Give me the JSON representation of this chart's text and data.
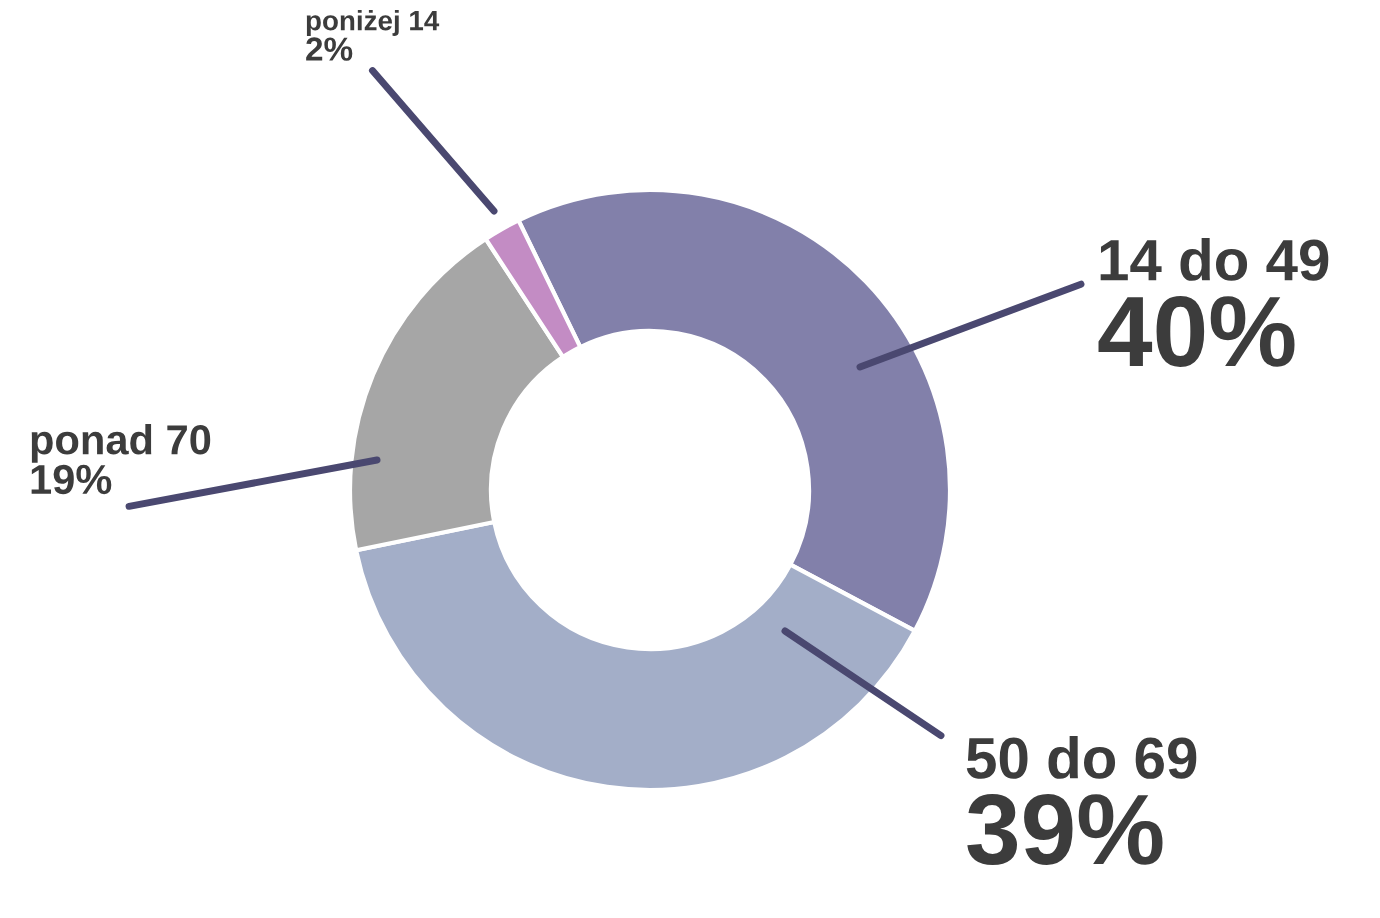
{
  "chart_data": {
    "type": "donut",
    "categories": [
      "14 do 49",
      "50 do 69",
      "ponad 70",
      "poniżej 14"
    ],
    "values": [
      40,
      39,
      19,
      2
    ],
    "value_labels": [
      "40%",
      "39%",
      "19%",
      "2%"
    ],
    "colors": [
      "#8280aa",
      "#a3aec8",
      "#a6a6a6",
      "#c38cc4"
    ],
    "legend": false
  }
}
